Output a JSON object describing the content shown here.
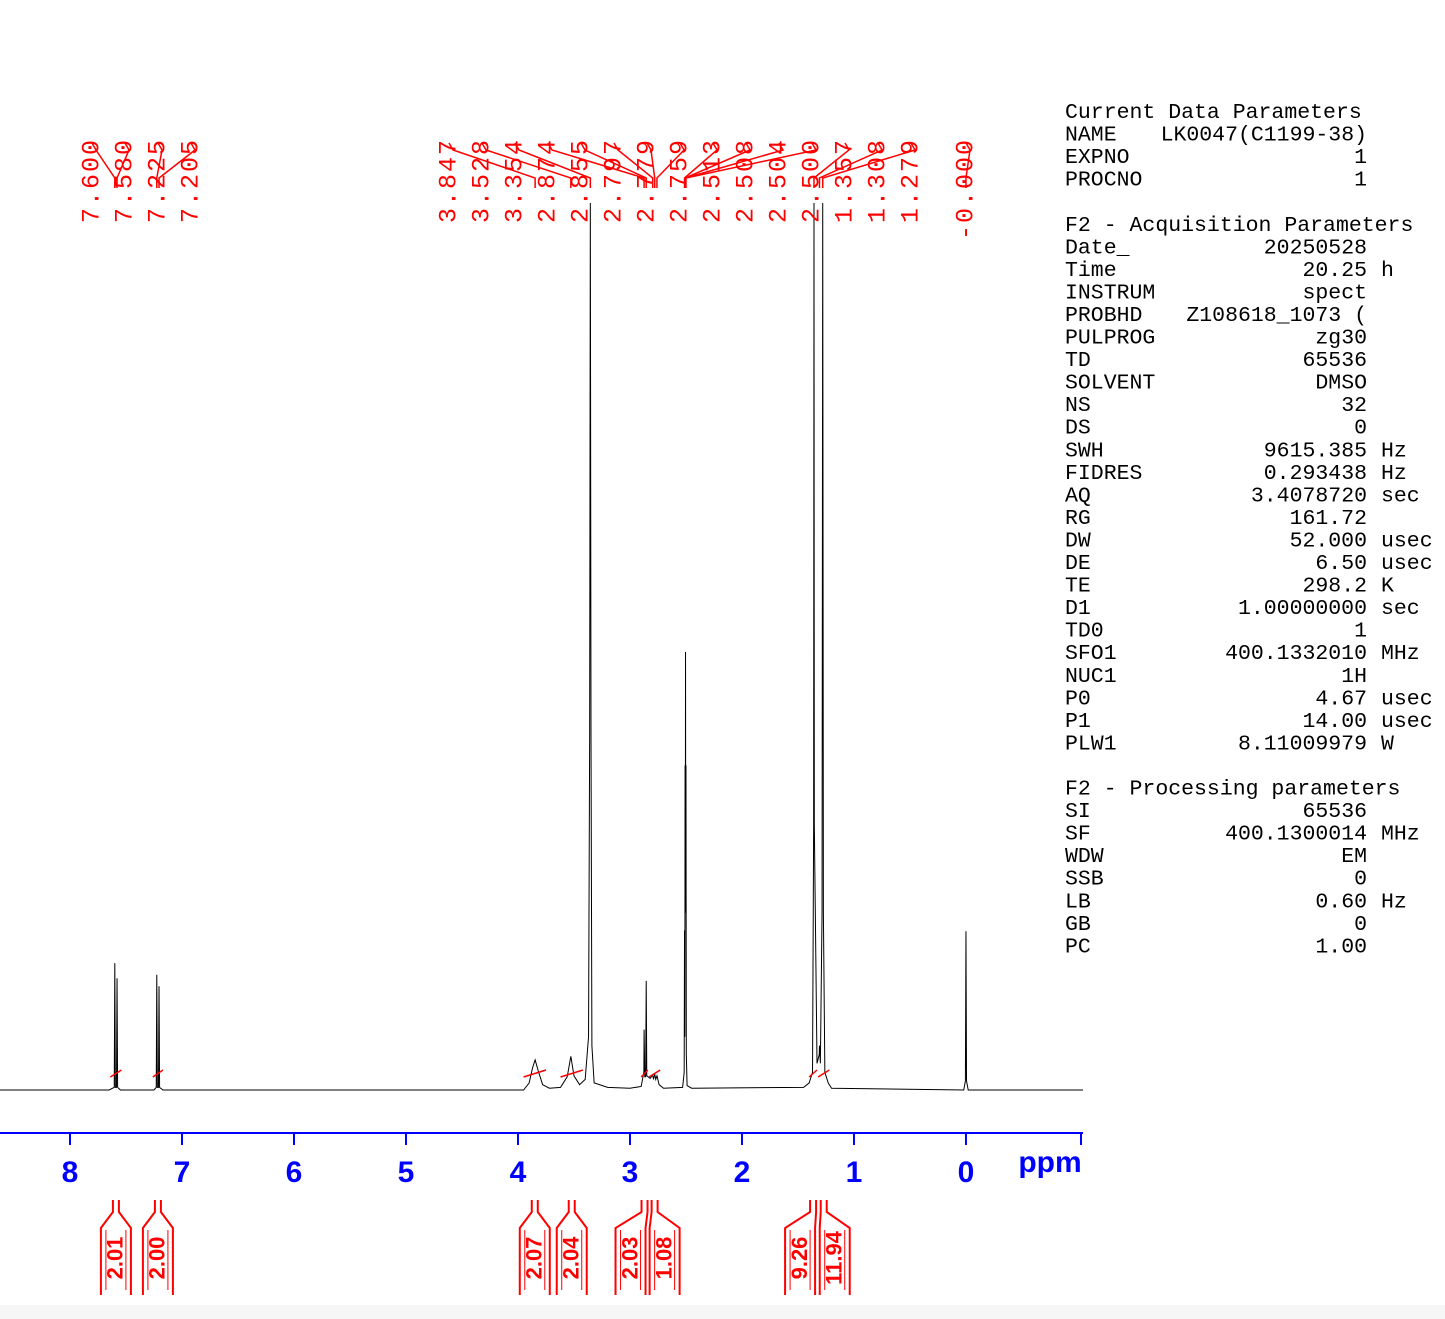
{
  "chart_data": {
    "type": "line",
    "x_label": "ppm",
    "xlim": [
      8.625,
      -1.045
    ],
    "xticks": [
      8,
      7,
      6,
      5,
      4,
      3,
      2,
      1,
      0
    ],
    "ylim": [
      0,
      100
    ],
    "color": "#000000",
    "axis_color": "#0000ff",
    "annotation_color": "#ff0000",
    "x": [
      8.625,
      7.65,
      7.605,
      7.6,
      7.595,
      7.585,
      7.58,
      7.575,
      7.55,
      7.25,
      7.23,
      7.225,
      7.22,
      7.21,
      7.205,
      7.2,
      7.17,
      3.95,
      3.9,
      3.87,
      3.847,
      3.82,
      3.78,
      3.72,
      3.62,
      3.56,
      3.528,
      3.5,
      3.45,
      3.4,
      3.37,
      3.36,
      3.354,
      3.348,
      3.34,
      3.32,
      3.2,
      3.0,
      2.9,
      2.876,
      2.874,
      2.868,
      2.86,
      2.855,
      2.85,
      2.82,
      2.797,
      2.79,
      2.779,
      2.77,
      2.759,
      2.74,
      2.7,
      2.53,
      2.516,
      2.513,
      2.51,
      2.508,
      2.506,
      2.504,
      2.502,
      2.5,
      2.497,
      2.49,
      2.45,
      1.45,
      1.4,
      1.37,
      1.36,
      1.357,
      1.354,
      1.33,
      1.31,
      1.308,
      1.3,
      1.285,
      1.279,
      1.273,
      1.26,
      1.23,
      1.2,
      0.02,
      0.005,
      0,
      -0.005,
      -0.02,
      -1.045
    ],
    "values": [
      0,
      0,
      0.3,
      14.3,
      0.3,
      0.3,
      12.6,
      0.3,
      0,
      0,
      0.3,
      13,
      0.3,
      0.3,
      11.7,
      0.3,
      0,
      0,
      0.8,
      2.5,
      3.4,
      2.2,
      0.6,
      0.2,
      0.3,
      1.5,
      3.8,
      1.6,
      0.6,
      1.2,
      6,
      40,
      100,
      40,
      5,
      0.8,
      0.3,
      0.2,
      0.4,
      2,
      6.8,
      1.5,
      1.5,
      12.3,
      1.6,
      1.3,
      1.7,
      1.2,
      1.8,
      1.2,
      1.6,
      0.6,
      0.2,
      0.3,
      2,
      18,
      6,
      36.6,
      20,
      49.4,
      20,
      36.6,
      4,
      0.5,
      0.2,
      0.3,
      0.8,
      2,
      30,
      100,
      30,
      3,
      4,
      5,
      3,
      20,
      100,
      20,
      2,
      0.8,
      0.2,
      0,
      1,
      17.9,
      1,
      0,
      0
    ],
    "peak_labels": [
      {
        "value": 7.6,
        "label": "7.600"
      },
      {
        "value": 7.58,
        "label": "7.580"
      },
      {
        "value": 7.225,
        "label": "7.225"
      },
      {
        "value": 7.205,
        "label": "7.205"
      },
      {
        "value": 3.847,
        "label": "3.847"
      },
      {
        "value": 3.528,
        "label": "3.528"
      },
      {
        "value": 3.354,
        "label": "3.354"
      },
      {
        "value": 2.874,
        "label": "2.874"
      },
      {
        "value": 2.855,
        "label": "2.855"
      },
      {
        "value": 2.797,
        "label": "2.797"
      },
      {
        "value": 2.779,
        "label": "2.779"
      },
      {
        "value": 2.759,
        "label": "2.759"
      },
      {
        "value": 2.513,
        "label": "2.513"
      },
      {
        "value": 2.508,
        "label": "2.508"
      },
      {
        "value": 2.504,
        "label": "2.504"
      },
      {
        "value": 2.5,
        "label": "2.500"
      },
      {
        "value": 1.357,
        "label": "1.357"
      },
      {
        "value": 1.308,
        "label": "1.308"
      },
      {
        "value": 1.279,
        "label": "1.279"
      },
      {
        "value": 0,
        "label": "-0.000"
      }
    ],
    "integrals": {
      "values": [
        2.01,
        2,
        2.07,
        2.04,
        2.03,
        1.08,
        9.26,
        11.94
      ],
      "value_labels": [
        "2.01",
        "2.00",
        "2.07",
        "2.04",
        "2.03",
        "1.08",
        "9.26",
        "11.94"
      ],
      "from": [
        7.64,
        7.26,
        3.95,
        3.62,
        2.9,
        2.83,
        1.4,
        1.32
      ],
      "to": [
        7.54,
        7.17,
        3.75,
        3.42,
        2.84,
        2.73,
        1.33,
        1.22
      ]
    }
  },
  "parameters": [
    {
      "title": "Current Data Parameters",
      "rows": [
        [
          "NAME",
          "LK0047(C1199-38)"
        ],
        [
          "EXPNO",
          "1"
        ],
        [
          "PROCNO",
          "1"
        ]
      ]
    },
    {
      "title": "F2 - Acquisition Parameters",
      "rows": [
        [
          "Date_",
          "20250528"
        ],
        [
          "Time",
          "20.25",
          "h"
        ],
        [
          "INSTRUM",
          "spect"
        ],
        [
          "PROBHD",
          "Z108618_1073 ("
        ],
        [
          "PULPROG",
          "zg30"
        ],
        [
          "TD",
          "65536"
        ],
        [
          "SOLVENT",
          "DMSO"
        ],
        [
          "NS",
          "32"
        ],
        [
          "DS",
          "0"
        ],
        [
          "SWH",
          "9615.385",
          "Hz"
        ],
        [
          "FIDRES",
          "0.293438",
          "Hz"
        ],
        [
          "AQ",
          "3.4078720",
          "sec"
        ],
        [
          "RG",
          "161.72"
        ],
        [
          "DW",
          "52.000",
          "usec"
        ],
        [
          "DE",
          "6.50",
          "usec"
        ],
        [
          "TE",
          "298.2",
          "K"
        ],
        [
          "D1",
          "1.00000000",
          "sec"
        ],
        [
          "TD0",
          "1"
        ],
        [
          "SFO1",
          "400.1332010",
          "MHz"
        ],
        [
          "NUC1",
          "1H"
        ],
        [
          "P0",
          "4.67",
          "usec"
        ],
        [
          "P1",
          "14.00",
          "usec"
        ],
        [
          "PLW1",
          "8.11009979",
          "W"
        ]
      ]
    },
    {
      "title": "F2 - Processing parameters",
      "rows": [
        [
          "SI",
          "65536"
        ],
        [
          "SF",
          "400.1300014",
          "MHz"
        ],
        [
          "WDW",
          "EM"
        ],
        [
          "SSB",
          "0"
        ],
        [
          "LB",
          "0.60",
          "Hz"
        ],
        [
          "GB",
          "0"
        ],
        [
          "PC",
          "1.00"
        ]
      ]
    }
  ]
}
